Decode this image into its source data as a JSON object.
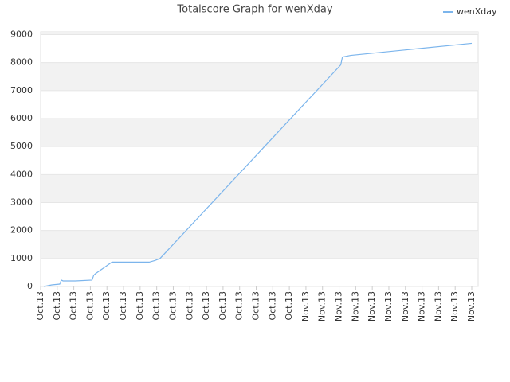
{
  "chart_data": {
    "type": "line",
    "title": "Totalscore Graph for wenXday",
    "series": [
      {
        "name": "wenXday",
        "color": "#7cb5ec",
        "x": [
          0.2,
          0.67,
          1.15,
          1.25,
          1.35,
          2.1,
          3.1,
          3.2,
          3.3,
          4.3,
          6.55,
          6.9,
          7.2,
          18.1,
          18.2,
          18.7,
          26
        ],
        "values": [
          0,
          57,
          85,
          230,
          200,
          200,
          230,
          400,
          455,
          870,
          870,
          930,
          1000,
          7920,
          8200,
          8260,
          8690
        ]
      }
    ],
    "xlim": [
      0,
      26
    ],
    "xticks": [
      {
        "value": 0,
        "label": "Oct.13"
      },
      {
        "value": 1,
        "label": "Oct.13"
      },
      {
        "value": 2,
        "label": "Oct.13"
      },
      {
        "value": 3,
        "label": "Oct.13"
      },
      {
        "value": 4,
        "label": "Oct.13"
      },
      {
        "value": 5,
        "label": "Oct.13"
      },
      {
        "value": 6,
        "label": "Oct.13"
      },
      {
        "value": 7,
        "label": "Oct.13"
      },
      {
        "value": 8,
        "label": "Oct.13"
      },
      {
        "value": 9,
        "label": "Oct.13"
      },
      {
        "value": 10,
        "label": "Oct.13"
      },
      {
        "value": 11,
        "label": "Oct.13"
      },
      {
        "value": 12,
        "label": "Oct.13"
      },
      {
        "value": 13,
        "label": "Oct.13"
      },
      {
        "value": 14,
        "label": "Oct.13"
      },
      {
        "value": 15,
        "label": "Oct.13"
      },
      {
        "value": 16,
        "label": "Nov.13"
      },
      {
        "value": 17,
        "label": "Nov.13"
      },
      {
        "value": 18,
        "label": "Nov.13"
      },
      {
        "value": 19,
        "label": "Nov.13"
      },
      {
        "value": 20,
        "label": "Nov.13"
      },
      {
        "value": 21,
        "label": "Nov.13"
      },
      {
        "value": 22,
        "label": "Nov.13"
      },
      {
        "value": 23,
        "label": "Nov.13"
      },
      {
        "value": 24,
        "label": "Nov.13"
      },
      {
        "value": 25,
        "label": "Nov.13"
      },
      {
        "value": 26,
        "label": "Nov.13"
      }
    ],
    "ylim": [
      0,
      9100
    ],
    "yticks": [
      0,
      1000,
      2000,
      3000,
      4000,
      5000,
      6000,
      7000,
      8000,
      9000
    ],
    "grid": true,
    "legend": "top-right"
  }
}
